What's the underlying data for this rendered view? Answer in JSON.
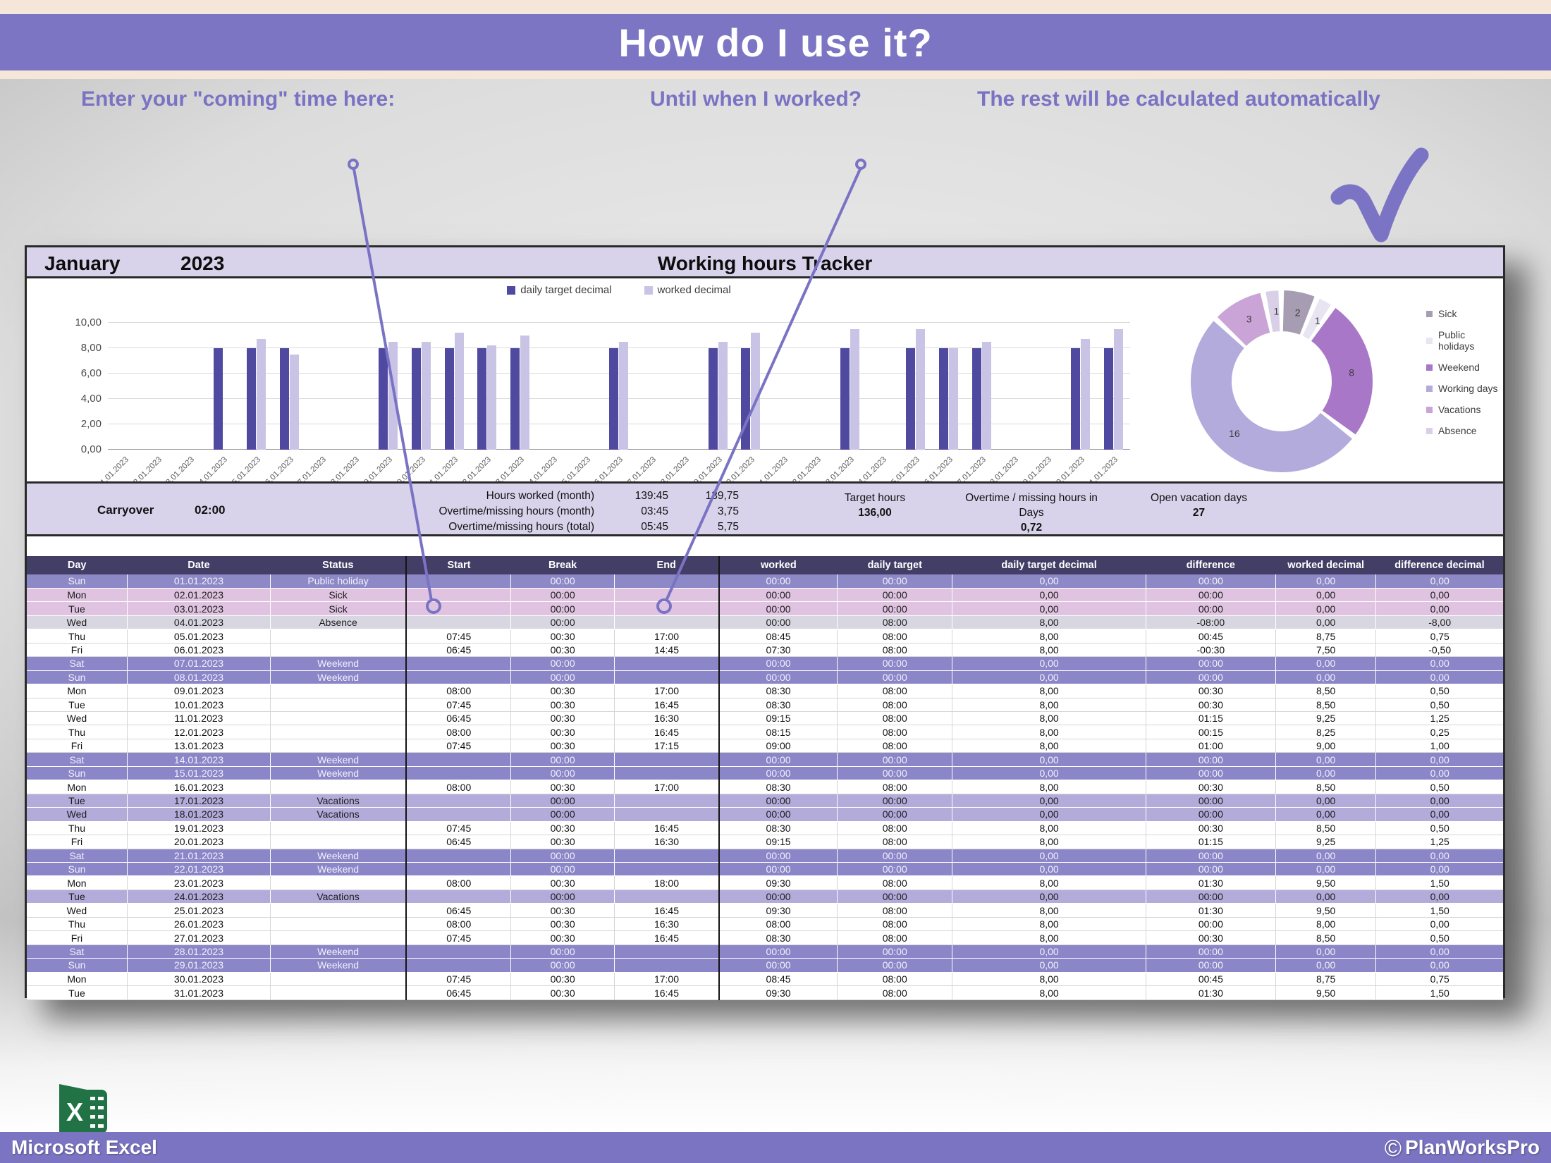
{
  "banner": {
    "title": "How do I use it?"
  },
  "annotations": {
    "coming": "Enter your \"coming\" time here:",
    "until": "Until when I worked?",
    "rest": "The rest will be calculated automatically"
  },
  "colors": {
    "accent_purple": "#7b74c3",
    "bar_dark": "#4f49a0",
    "bar_light": "#c9c3e6",
    "row_holiday": "#8d89c7",
    "row_sick": "#dfc3e1",
    "row_absence": "#d8d7e1",
    "row_weekend": "#8b86c8",
    "row_vacation": "#b3abda",
    "band_lavender": "#d8d3eb",
    "header_navy": "#423e66",
    "excel_green": "#217346"
  },
  "sheet": {
    "month": "January",
    "year": "2023",
    "title": "Working hours Tracker",
    "summary": {
      "carryover_label": "Carryover",
      "carryover_value": "02:00",
      "rows": [
        {
          "label": "Hours worked (month)",
          "time": "139:45",
          "decimal": "139,75"
        },
        {
          "label": "Overtime/missing hours (month)",
          "time": "03:45",
          "decimal": "3,75"
        },
        {
          "label": "Overtime/missing hours (total)",
          "time": "05:45",
          "decimal": "5,75"
        }
      ],
      "target_hours_label": "Target hours",
      "target_hours_value": "136,00",
      "overtime_days_label1": "Overtime / missing hours in",
      "overtime_days_label2": "Days",
      "overtime_days_value": "0,72",
      "open_vacation_label": "Open vacation days",
      "open_vacation_value": "27"
    },
    "table": {
      "headers": [
        "Day",
        "Date",
        "Status",
        "Start",
        "Break",
        "End",
        "worked",
        "daily target",
        "daily target decimal",
        "difference",
        "worked decimal",
        "difference decimal"
      ],
      "rows": [
        {
          "day": "Sun",
          "date": "01.01.2023",
          "status": "Public holiday",
          "type": "holiday",
          "start": "",
          "break": "00:00",
          "end": "",
          "worked": "00:00",
          "target": "00:00",
          "target_dec": "0,00",
          "diff": "00:00",
          "worked_dec": "0,00",
          "diff_dec": "0,00"
        },
        {
          "day": "Mon",
          "date": "02.01.2023",
          "status": "Sick",
          "type": "sick",
          "start": "",
          "break": "00:00",
          "end": "",
          "worked": "00:00",
          "target": "00:00",
          "target_dec": "0,00",
          "diff": "00:00",
          "worked_dec": "0,00",
          "diff_dec": "0,00"
        },
        {
          "day": "Tue",
          "date": "03.01.2023",
          "status": "Sick",
          "type": "sick",
          "start": "",
          "break": "00:00",
          "end": "",
          "worked": "00:00",
          "target": "00:00",
          "target_dec": "0,00",
          "diff": "00:00",
          "worked_dec": "0,00",
          "diff_dec": "0,00"
        },
        {
          "day": "Wed",
          "date": "04.01.2023",
          "status": "Absence",
          "type": "absence",
          "start": "",
          "break": "00:00",
          "end": "",
          "worked": "00:00",
          "target": "08:00",
          "target_dec": "8,00",
          "diff": "-08:00",
          "worked_dec": "0,00",
          "diff_dec": "-8,00"
        },
        {
          "day": "Thu",
          "date": "05.01.2023",
          "status": "",
          "type": "normal",
          "start": "07:45",
          "break": "00:30",
          "end": "17:00",
          "worked": "08:45",
          "target": "08:00",
          "target_dec": "8,00",
          "diff": "00:45",
          "worked_dec": "8,75",
          "diff_dec": "0,75"
        },
        {
          "day": "Fri",
          "date": "06.01.2023",
          "status": "",
          "type": "normal",
          "start": "06:45",
          "break": "00:30",
          "end": "14:45",
          "worked": "07:30",
          "target": "08:00",
          "target_dec": "8,00",
          "diff": "-00:30",
          "worked_dec": "7,50",
          "diff_dec": "-0,50"
        },
        {
          "day": "Sat",
          "date": "07.01.2023",
          "status": "Weekend",
          "type": "weekend",
          "start": "",
          "break": "00:00",
          "end": "",
          "worked": "00:00",
          "target": "00:00",
          "target_dec": "0,00",
          "diff": "00:00",
          "worked_dec": "0,00",
          "diff_dec": "0,00"
        },
        {
          "day": "Sun",
          "date": "08.01.2023",
          "status": "Weekend",
          "type": "weekend",
          "start": "",
          "break": "00:00",
          "end": "",
          "worked": "00:00",
          "target": "00:00",
          "target_dec": "0,00",
          "diff": "00:00",
          "worked_dec": "0,00",
          "diff_dec": "0,00"
        },
        {
          "day": "Mon",
          "date": "09.01.2023",
          "status": "",
          "type": "normal",
          "start": "08:00",
          "break": "00:30",
          "end": "17:00",
          "worked": "08:30",
          "target": "08:00",
          "target_dec": "8,00",
          "diff": "00:30",
          "worked_dec": "8,50",
          "diff_dec": "0,50"
        },
        {
          "day": "Tue",
          "date": "10.01.2023",
          "status": "",
          "type": "normal",
          "start": "07:45",
          "break": "00:30",
          "end": "16:45",
          "worked": "08:30",
          "target": "08:00",
          "target_dec": "8,00",
          "diff": "00:30",
          "worked_dec": "8,50",
          "diff_dec": "0,50"
        },
        {
          "day": "Wed",
          "date": "11.01.2023",
          "status": "",
          "type": "normal",
          "start": "06:45",
          "break": "00:30",
          "end": "16:30",
          "worked": "09:15",
          "target": "08:00",
          "target_dec": "8,00",
          "diff": "01:15",
          "worked_dec": "9,25",
          "diff_dec": "1,25"
        },
        {
          "day": "Thu",
          "date": "12.01.2023",
          "status": "",
          "type": "normal",
          "start": "08:00",
          "break": "00:30",
          "end": "16:45",
          "worked": "08:15",
          "target": "08:00",
          "target_dec": "8,00",
          "diff": "00:15",
          "worked_dec": "8,25",
          "diff_dec": "0,25"
        },
        {
          "day": "Fri",
          "date": "13.01.2023",
          "status": "",
          "type": "normal",
          "start": "07:45",
          "break": "00:30",
          "end": "17:15",
          "worked": "09:00",
          "target": "08:00",
          "target_dec": "8,00",
          "diff": "01:00",
          "worked_dec": "9,00",
          "diff_dec": "1,00"
        },
        {
          "day": "Sat",
          "date": "14.01.2023",
          "status": "Weekend",
          "type": "weekend",
          "start": "",
          "break": "00:00",
          "end": "",
          "worked": "00:00",
          "target": "00:00",
          "target_dec": "0,00",
          "diff": "00:00",
          "worked_dec": "0,00",
          "diff_dec": "0,00"
        },
        {
          "day": "Sun",
          "date": "15.01.2023",
          "status": "Weekend",
          "type": "weekend",
          "start": "",
          "break": "00:00",
          "end": "",
          "worked": "00:00",
          "target": "00:00",
          "target_dec": "0,00",
          "diff": "00:00",
          "worked_dec": "0,00",
          "diff_dec": "0,00"
        },
        {
          "day": "Mon",
          "date": "16.01.2023",
          "status": "",
          "type": "normal",
          "start": "08:00",
          "break": "00:30",
          "end": "17:00",
          "worked": "08:30",
          "target": "08:00",
          "target_dec": "8,00",
          "diff": "00:30",
          "worked_dec": "8,50",
          "diff_dec": "0,50"
        },
        {
          "day": "Tue",
          "date": "17.01.2023",
          "status": "Vacations",
          "type": "vacation",
          "start": "",
          "break": "00:00",
          "end": "",
          "worked": "00:00",
          "target": "00:00",
          "target_dec": "0,00",
          "diff": "00:00",
          "worked_dec": "0,00",
          "diff_dec": "0,00"
        },
        {
          "day": "Wed",
          "date": "18.01.2023",
          "status": "Vacations",
          "type": "vacation",
          "start": "",
          "break": "00:00",
          "end": "",
          "worked": "00:00",
          "target": "00:00",
          "target_dec": "0,00",
          "diff": "00:00",
          "worked_dec": "0,00",
          "diff_dec": "0,00"
        },
        {
          "day": "Thu",
          "date": "19.01.2023",
          "status": "",
          "type": "normal",
          "start": "07:45",
          "break": "00:30",
          "end": "16:45",
          "worked": "08:30",
          "target": "08:00",
          "target_dec": "8,00",
          "diff": "00:30",
          "worked_dec": "8,50",
          "diff_dec": "0,50"
        },
        {
          "day": "Fri",
          "date": "20.01.2023",
          "status": "",
          "type": "normal",
          "start": "06:45",
          "break": "00:30",
          "end": "16:30",
          "worked": "09:15",
          "target": "08:00",
          "target_dec": "8,00",
          "diff": "01:15",
          "worked_dec": "9,25",
          "diff_dec": "1,25"
        },
        {
          "day": "Sat",
          "date": "21.01.2023",
          "status": "Weekend",
          "type": "weekend",
          "start": "",
          "break": "00:00",
          "end": "",
          "worked": "00:00",
          "target": "00:00",
          "target_dec": "0,00",
          "diff": "00:00",
          "worked_dec": "0,00",
          "diff_dec": "0,00"
        },
        {
          "day": "Sun",
          "date": "22.01.2023",
          "status": "Weekend",
          "type": "weekend",
          "start": "",
          "break": "00:00",
          "end": "",
          "worked": "00:00",
          "target": "00:00",
          "target_dec": "0,00",
          "diff": "00:00",
          "worked_dec": "0,00",
          "diff_dec": "0,00"
        },
        {
          "day": "Mon",
          "date": "23.01.2023",
          "status": "",
          "type": "normal",
          "start": "08:00",
          "break": "00:30",
          "end": "18:00",
          "worked": "09:30",
          "target": "08:00",
          "target_dec": "8,00",
          "diff": "01:30",
          "worked_dec": "9,50",
          "diff_dec": "1,50"
        },
        {
          "day": "Tue",
          "date": "24.01.2023",
          "status": "Vacations",
          "type": "vacation",
          "start": "",
          "break": "00:00",
          "end": "",
          "worked": "00:00",
          "target": "00:00",
          "target_dec": "0,00",
          "diff": "00:00",
          "worked_dec": "0,00",
          "diff_dec": "0,00"
        },
        {
          "day": "Wed",
          "date": "25.01.2023",
          "status": "",
          "type": "normal",
          "start": "06:45",
          "break": "00:30",
          "end": "16:45",
          "worked": "09:30",
          "target": "08:00",
          "target_dec": "8,00",
          "diff": "01:30",
          "worked_dec": "9,50",
          "diff_dec": "1,50"
        },
        {
          "day": "Thu",
          "date": "26.01.2023",
          "status": "",
          "type": "normal",
          "start": "08:00",
          "break": "00:30",
          "end": "16:30",
          "worked": "08:00",
          "target": "08:00",
          "target_dec": "8,00",
          "diff": "00:00",
          "worked_dec": "8,00",
          "diff_dec": "0,00"
        },
        {
          "day": "Fri",
          "date": "27.01.2023",
          "status": "",
          "type": "normal",
          "start": "07:45",
          "break": "00:30",
          "end": "16:45",
          "worked": "08:30",
          "target": "08:00",
          "target_dec": "8,00",
          "diff": "00:30",
          "worked_dec": "8,50",
          "diff_dec": "0,50"
        },
        {
          "day": "Sat",
          "date": "28.01.2023",
          "status": "Weekend",
          "type": "weekend",
          "start": "",
          "break": "00:00",
          "end": "",
          "worked": "00:00",
          "target": "00:00",
          "target_dec": "0,00",
          "diff": "00:00",
          "worked_dec": "0,00",
          "diff_dec": "0,00"
        },
        {
          "day": "Sun",
          "date": "29.01.2023",
          "status": "Weekend",
          "type": "weekend",
          "start": "",
          "break": "00:00",
          "end": "",
          "worked": "00:00",
          "target": "00:00",
          "target_dec": "0,00",
          "diff": "00:00",
          "worked_dec": "0,00",
          "diff_dec": "0,00"
        },
        {
          "day": "Mon",
          "date": "30.01.2023",
          "status": "",
          "type": "normal",
          "start": "07:45",
          "break": "00:30",
          "end": "17:00",
          "worked": "08:45",
          "target": "08:00",
          "target_dec": "8,00",
          "diff": "00:45",
          "worked_dec": "8,75",
          "diff_dec": "0,75"
        },
        {
          "day": "Tue",
          "date": "31.01.2023",
          "status": "",
          "type": "normal",
          "start": "06:45",
          "break": "00:30",
          "end": "16:45",
          "worked": "09:30",
          "target": "08:00",
          "target_dec": "8,00",
          "diff": "01:30",
          "worked_dec": "9,50",
          "diff_dec": "1,50"
        }
      ]
    }
  },
  "chart_data": [
    {
      "type": "bar",
      "title": "",
      "categories": [
        "01.01.2023",
        "02.01.2023",
        "03.01.2023",
        "04.01.2023",
        "05.01.2023",
        "06.01.2023",
        "07.01.2023",
        "08.01.2023",
        "09.01.2023",
        "10.01.2023",
        "11.01.2023",
        "12.01.2023",
        "13.01.2023",
        "14.01.2023",
        "15.01.2023",
        "16.01.2023",
        "17.01.2023",
        "18.01.2023",
        "19.01.2023",
        "20.01.2023",
        "21.01.2023",
        "22.01.2023",
        "23.01.2023",
        "24.01.2023",
        "25.01.2023",
        "26.01.2023",
        "27.01.2023",
        "28.01.2023",
        "29.01.2023",
        "30.01.2023",
        "31.01.2023"
      ],
      "series": [
        {
          "name": "daily target decimal",
          "color": "#4f49a0",
          "values": [
            0,
            0,
            0,
            8,
            8,
            8,
            0,
            0,
            8,
            8,
            8,
            8,
            8,
            0,
            0,
            8,
            0,
            0,
            8,
            8,
            0,
            0,
            8,
            0,
            8,
            8,
            8,
            0,
            0,
            8,
            8
          ]
        },
        {
          "name": "worked decimal",
          "color": "#c9c3e6",
          "values": [
            0,
            0,
            0,
            0,
            8.75,
            7.5,
            0,
            0,
            8.5,
            8.5,
            9.25,
            8.25,
            9,
            0,
            0,
            8.5,
            0,
            0,
            8.5,
            9.25,
            0,
            0,
            9.5,
            0,
            9.5,
            8,
            8.5,
            0,
            0,
            8.75,
            9.5
          ]
        }
      ],
      "ylim": [
        0,
        10
      ],
      "yticks": [
        "0,00",
        "2,00",
        "4,00",
        "6,00",
        "8,00",
        "10,00"
      ],
      "grid": true,
      "legend_position": "top",
      "xlabel": "",
      "ylabel": ""
    },
    {
      "type": "pie",
      "subtype": "donut",
      "start_angle_deg": -45,
      "slices": [
        {
          "label": "Vacations",
          "value": 3,
          "color": "#cba4d7"
        },
        {
          "label": "Absence",
          "value": 1,
          "color": "#d9d0e7"
        },
        {
          "label": "Sick",
          "value": 2,
          "color": "#a79db3"
        },
        {
          "label": "Public holidays",
          "value": 1,
          "color": "#e9e4f1"
        },
        {
          "label": "Weekend",
          "value": 8,
          "color": "#a877c7"
        },
        {
          "label": "Working days",
          "value": 16,
          "color": "#b2abdb"
        }
      ],
      "legend_order": [
        "Sick",
        "Public holidays",
        "Weekend",
        "Working days",
        "Vacations",
        "Absence"
      ],
      "legend_position": "right"
    }
  ],
  "footer": {
    "left": "Microsoft Excel",
    "copyright_symbol": "©",
    "right": "PlanWorksPro"
  }
}
